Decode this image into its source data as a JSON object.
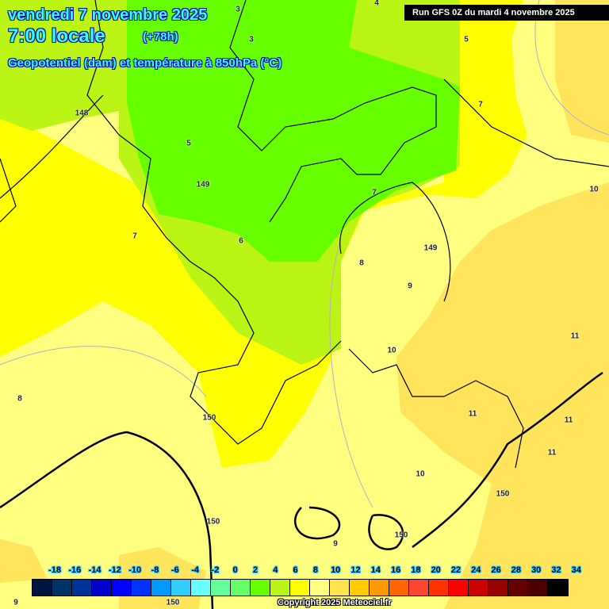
{
  "header": {
    "date": "vendredi 7 novembre 2025",
    "time": "7:00 locale",
    "lead": "(+78h)",
    "parameter": "Geopotentiel (dam) et température à 850hPa (°C)",
    "run": "Run GFS 0Z du mardi 4 novembre 2025"
  },
  "map_labels": [
    "4",
    "3",
    "3",
    "5",
    "7",
    "148",
    "5",
    "149",
    "7",
    "10",
    "7",
    "6",
    "149",
    "8",
    "9",
    "10",
    "11",
    "8",
    "150",
    "11",
    "11",
    "11",
    "10",
    "150",
    "150",
    "9",
    "150",
    "9",
    "150"
  ],
  "legend": {
    "ticks": [
      "-18",
      "-16",
      "-14",
      "-12",
      "-10",
      "-8",
      "-6",
      "-4",
      "-2",
      "0",
      "2",
      "4",
      "6",
      "8",
      "10",
      "12",
      "14",
      "16",
      "18",
      "20",
      "22",
      "24",
      "26",
      "28",
      "30",
      "32",
      "34"
    ],
    "colors": [
      "#001540",
      "#003366",
      "#003399",
      "#0000cc",
      "#0000ff",
      "#0033ff",
      "#0099ff",
      "#33ccff",
      "#66ffff",
      "#66ff99",
      "#66ff66",
      "#66ff00",
      "#bbf516",
      "#ffff00",
      "#ffff80",
      "#ffe44d",
      "#ffcc00",
      "#ff9900",
      "#ff6600",
      "#ff4433",
      "#ff3300",
      "#ff0000",
      "#cc0000",
      "#990000",
      "#660000",
      "#4d0000",
      "#000000"
    ]
  },
  "copyright": "Copyright 2025 Meteociel.fr"
}
